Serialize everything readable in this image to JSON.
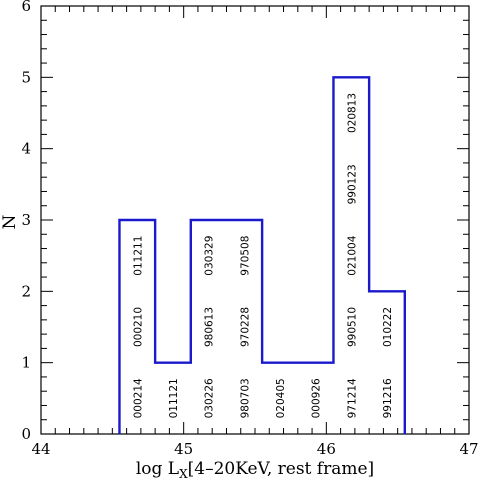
{
  "chart_data": {
    "type": "bar",
    "title": "",
    "xlabel": {
      "prefix": "log L",
      "subscript": "X",
      "suffix": "[4–20KeV, rest frame]"
    },
    "ylabel": "N",
    "xlim": [
      44,
      47
    ],
    "ylim": [
      0,
      6
    ],
    "x_ticks": [
      "44",
      "45",
      "46",
      "47"
    ],
    "y_ticks": [
      "0",
      "1",
      "2",
      "3",
      "4",
      "5",
      "6"
    ],
    "grid": false,
    "line_color": "#1a1acc",
    "bins": [
      {
        "x0": 44.55,
        "x1": 44.8,
        "value": 3,
        "labels": [
          "000214",
          "000210",
          "011211"
        ]
      },
      {
        "x0": 44.8,
        "x1": 45.05,
        "value": 1,
        "labels": [
          "011121"
        ]
      },
      {
        "x0": 45.05,
        "x1": 45.3,
        "value": 3,
        "labels": [
          "030226",
          "980613",
          "030329"
        ]
      },
      {
        "x0": 45.3,
        "x1": 45.55,
        "value": 3,
        "labels": [
          "980703",
          "970228",
          "970508"
        ]
      },
      {
        "x0": 45.55,
        "x1": 45.8,
        "value": 1,
        "labels": [
          "020405"
        ]
      },
      {
        "x0": 45.8,
        "x1": 46.05,
        "value": 1,
        "labels": [
          "000926"
        ]
      },
      {
        "x0": 46.05,
        "x1": 46.3,
        "value": 5,
        "labels": [
          "971214",
          "990510",
          "021004",
          "990123",
          "020813"
        ]
      },
      {
        "x0": 46.3,
        "x1": 46.55,
        "value": 2,
        "labels": [
          "991216",
          "010222"
        ]
      }
    ]
  }
}
